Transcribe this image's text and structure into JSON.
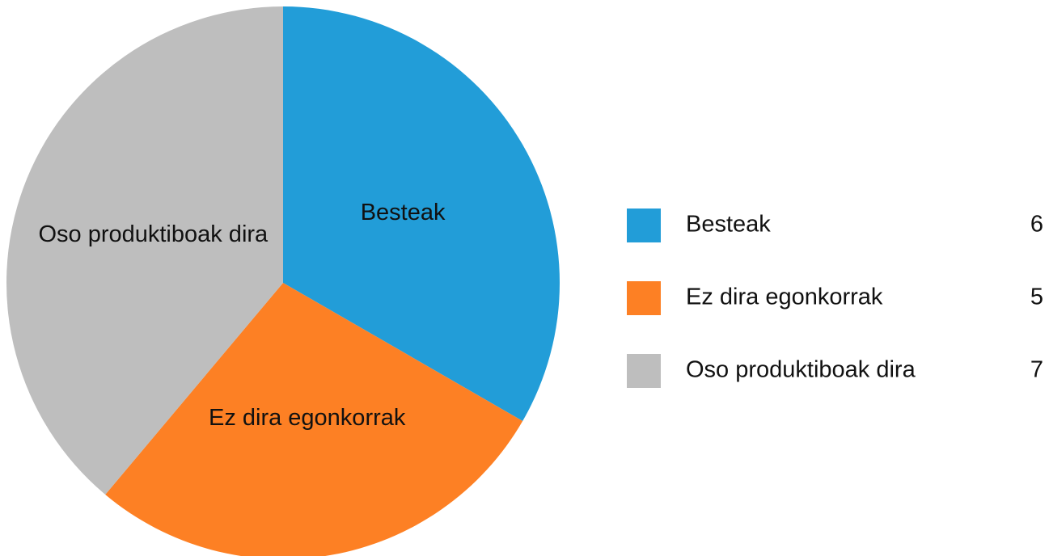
{
  "chart_data": {
    "type": "pie",
    "categories": [
      "Besteak",
      "Ez dira egonkorrak",
      "Oso produktiboak dira"
    ],
    "values": [
      6,
      5,
      7
    ],
    "colors": [
      "#229dd8",
      "#fd8024",
      "#bebebe"
    ],
    "legend": "right"
  }
}
